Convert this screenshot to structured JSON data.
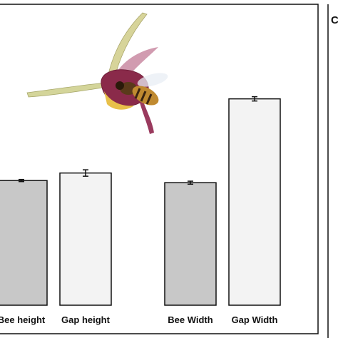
{
  "chart_data": {
    "type": "bar",
    "categories": [
      "Bee height",
      "Gap height",
      "Bee Width",
      "Gap Width"
    ],
    "values": [
      5.8,
      6.15,
      5.7,
      9.6
    ],
    "errors": [
      0.05,
      0.15,
      0.07,
      0.1
    ],
    "bar_colors": [
      "#c8c8c8",
      "#f3f3f3",
      "#c8c8c8",
      "#f3f3f3"
    ],
    "ylim": [
      0,
      14
    ],
    "title": "",
    "xlabel": "",
    "ylabel": "",
    "grid": false,
    "legend": "none"
  },
  "adjacent_panel": {
    "letter": "C"
  },
  "inset_image": {
    "icon": "bee-on-flower-illustration"
  },
  "colors": {
    "frame": "#111111",
    "bar_edge": "#111111",
    "error_bar": "#111111",
    "petal": "#8a2a4a",
    "stem": "#c9c98a",
    "bee": "#b07a2a"
  }
}
